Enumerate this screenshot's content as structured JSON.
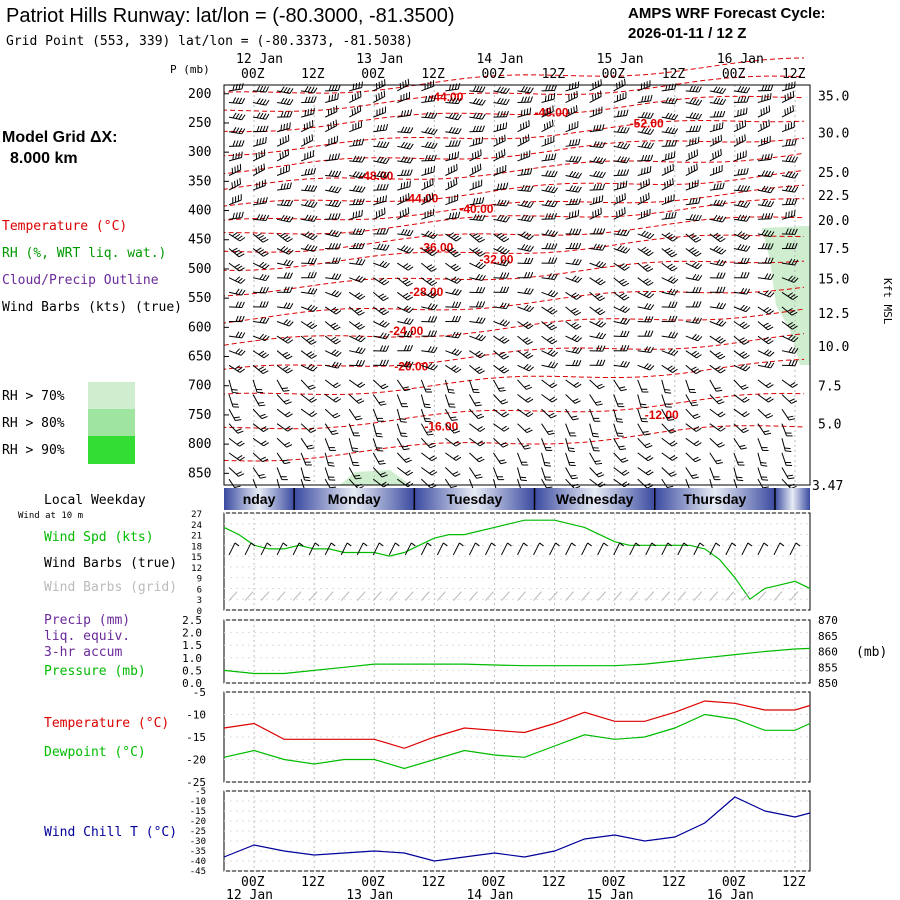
{
  "header": {
    "title": "Patriot Hills Runway:  lat/lon = (-80.3000, -81.3500)",
    "grid_point": "Grid Point (553, 339) lat/lon = (-80.3373, -81.5038)",
    "cycle_label": "AMPS WRF Forecast Cycle:",
    "cycle_value": "2026-01-11 / 12  Z",
    "model_grid_label": "Model Grid ΔX:",
    "model_grid_value": "8.000 km"
  },
  "time_axis": {
    "hour_labels": [
      "00Z",
      "12Z",
      "00Z",
      "12Z",
      "00Z",
      "12Z",
      "00Z",
      "12Z",
      "00Z",
      "12Z"
    ],
    "hour_labels_top": [
      "00Z",
      "12Z",
      "00Z",
      "12Z",
      "00Z",
      "12Z",
      "00Z",
      "12Z",
      "00Z",
      "12Z"
    ],
    "date_labels": [
      "12 Jan",
      "13 Jan",
      "14 Jan",
      "15 Jan",
      "16 Jan"
    ],
    "hours": [
      6,
      18,
      30,
      42,
      54,
      66,
      78,
      90,
      102,
      114
    ],
    "range_hours": [
      0,
      117
    ]
  },
  "weekday_bar": {
    "title": "Local Weekday",
    "days": [
      "Sunday",
      "Monday",
      "Tuesday",
      "Wednesday",
      "Thursday"
    ],
    "visible_first": "nday",
    "day_edges_hours": [
      -12,
      14,
      38,
      62,
      86,
      110,
      117
    ]
  },
  "colors": {
    "temperature": "#dd0000",
    "rh_label": "#009900",
    "cloud": "#6a2a9a",
    "wind_spd": "#00bb00",
    "dewpoint": "#00bb00",
    "wind_chill": "#000099",
    "rh70": "#cfeecf",
    "rh80": "#9fe59f",
    "rh90": "#33dd33",
    "weekday_dark": "#3a4aa0"
  },
  "profile": {
    "ylabel": "P (mb)",
    "pressure_ticks": [
      200,
      250,
      300,
      350,
      400,
      450,
      500,
      550,
      600,
      650,
      700,
      750,
      800,
      850
    ],
    "height_ticks_kft": [
      "35.0",
      "30.0",
      "25.0",
      "22.5",
      "20.0",
      "17.5",
      "15.0",
      "12.5",
      "10.0",
      "7.5",
      "5.0"
    ],
    "height_ticks_pressure": [
      205,
      268,
      336,
      375,
      418,
      466,
      518,
      577,
      634,
      701,
      766
    ],
    "surface_height": "3.47",
    "right_axis_label": "Kft MSL",
    "legend": {
      "temperature": "Temperature (°C)",
      "rh": "RH (%, WRT liq. wat.)",
      "cloud": "Cloud/Precip Outline",
      "wind": "Wind Barbs (kts) (true)",
      "rh70": "RH > 70%",
      "rh80": "RH > 80%",
      "rh90": "RH > 90%"
    },
    "isotherm_labels": [
      {
        "text": "-44.00",
        "t": 41,
        "p": 212
      },
      {
        "text": "-48.00",
        "t": 62,
        "p": 239
      },
      {
        "text": "-52.00",
        "t": 81,
        "p": 258
      },
      {
        "text": "-48.00",
        "t": 27,
        "p": 348
      },
      {
        "text": "-44.00",
        "t": 36,
        "p": 386
      },
      {
        "text": "-40.00",
        "t": 47,
        "p": 404
      },
      {
        "text": "-36.00",
        "t": 39,
        "p": 470
      },
      {
        "text": "-32.00",
        "t": 51,
        "p": 491
      },
      {
        "text": "-28.00",
        "t": 37,
        "p": 546
      },
      {
        "text": "-24.00",
        "t": 33,
        "p": 613
      },
      {
        "text": "-20.00",
        "t": 34,
        "p": 674
      },
      {
        "text": "-16.00",
        "t": 40,
        "p": 777
      },
      {
        "text": "-12.00",
        "t": 84,
        "p": 757
      }
    ]
  },
  "wind_panel": {
    "legend_local": "Wind at 10 m",
    "spd_label": "Wind Spd (kts)",
    "barbs_true": "Wind Barbs (true)",
    "barbs_grid": "Wind Barbs (grid)",
    "yticks": [
      "27",
      "24",
      "21",
      "18",
      "15",
      "12",
      "9",
      "6",
      "3",
      "0"
    ],
    "ylim": [
      0,
      27
    ]
  },
  "pressure_panel": {
    "precip_label": "Precip (mm)",
    "precip_sub1": "liq. equiv.",
    "precip_sub2": "3-hr accum",
    "pressure_label": "Pressure (mb)",
    "unit": "(mb)",
    "left_ticks": [
      "2.5",
      "2.0",
      "1.5",
      "1.0",
      "0.5",
      "0.0"
    ],
    "right_ticks": [
      "870",
      "865",
      "860",
      "855",
      "850"
    ],
    "ylim_mb": [
      850,
      870
    ]
  },
  "temp_panel": {
    "temp_label": "Temperature (°C)",
    "dew_label": "Dewpoint (°C)",
    "yticks": [
      "-5",
      "-10",
      "-15",
      "-20",
      "-25"
    ],
    "ylim": [
      -25,
      -5
    ]
  },
  "chill_panel": {
    "label": "Wind Chill T (°C)",
    "yticks": [
      "-5",
      "-10",
      "-15",
      "-20",
      "-25",
      "-30",
      "-35",
      "-40",
      "-45"
    ],
    "ylim": [
      -45,
      -5
    ]
  },
  "chart_data": [
    {
      "type": "line",
      "title": "Wind Spd (kts) at 10 m",
      "ylabel": "Wind Spd (kts)",
      "ylim": [
        0,
        27
      ],
      "x": [
        0,
        3,
        6,
        9,
        12,
        15,
        18,
        21,
        24,
        27,
        30,
        33,
        36,
        39,
        42,
        45,
        48,
        51,
        54,
        57,
        60,
        63,
        66,
        69,
        72,
        75,
        78,
        81,
        84,
        87,
        90,
        93,
        96,
        99,
        102,
        105,
        108,
        111,
        114,
        117
      ],
      "series": [
        {
          "name": "Wind Spd",
          "values": [
            23,
            21,
            18,
            17,
            17,
            18,
            17,
            17,
            16,
            16,
            16,
            15,
            16,
            18,
            20,
            21,
            21,
            22,
            23,
            24,
            25,
            25,
            25,
            24,
            23,
            21,
            19,
            18,
            18,
            18,
            18,
            18,
            17,
            14,
            9,
            3,
            6,
            7,
            8,
            6
          ]
        }
      ]
    },
    {
      "type": "line",
      "title": "Pressure (mb)",
      "ylabel": "Pressure (mb)",
      "ylim": [
        850,
        870
      ],
      "x": [
        0,
        6,
        12,
        18,
        24,
        30,
        36,
        42,
        48,
        54,
        60,
        66,
        72,
        78,
        84,
        90,
        96,
        102,
        108,
        114,
        117
      ],
      "series": [
        {
          "name": "Pressure",
          "values": [
            854,
            853,
            853,
            854,
            855,
            856,
            856,
            856,
            856,
            855.7,
            855.5,
            855.5,
            855.5,
            855.5,
            856,
            857,
            858,
            859,
            860,
            860.8,
            861
          ]
        }
      ]
    },
    {
      "type": "line",
      "title": "Temperature and Dewpoint",
      "ylabel": "°C",
      "ylim": [
        -25,
        -5
      ],
      "x": [
        0,
        6,
        12,
        18,
        24,
        30,
        36,
        42,
        48,
        54,
        60,
        66,
        72,
        78,
        84,
        90,
        96,
        102,
        108,
        114,
        117
      ],
      "series": [
        {
          "name": "Temperature",
          "values": [
            -13,
            -12,
            -15.5,
            -15.5,
            -15.5,
            -15.5,
            -17.5,
            -15,
            -13,
            -13.5,
            -14,
            -12,
            -9.5,
            -11.5,
            -11.5,
            -9.5,
            -7,
            -7.5,
            -9,
            -9,
            -8
          ]
        },
        {
          "name": "Dewpoint",
          "values": [
            -19.5,
            -18,
            -20,
            -21,
            -20,
            -20,
            -22,
            -20,
            -18,
            -19,
            -19.5,
            -17,
            -14.5,
            -15.5,
            -15,
            -13,
            -10,
            -11,
            -13.5,
            -13.5,
            -12
          ]
        }
      ]
    },
    {
      "type": "line",
      "title": "Wind Chill T (°C)",
      "ylabel": "Wind Chill T (°C)",
      "ylim": [
        -45,
        -5
      ],
      "x": [
        0,
        6,
        12,
        18,
        24,
        30,
        36,
        42,
        48,
        54,
        60,
        66,
        72,
        78,
        84,
        90,
        96,
        102,
        108,
        114,
        117
      ],
      "series": [
        {
          "name": "Wind Chill",
          "values": [
            -38,
            -32,
            -35,
            -37,
            -36,
            -35,
            -36,
            -40,
            -38,
            -36,
            -38,
            -35,
            -29,
            -27,
            -30,
            -28,
            -21,
            -8,
            -15,
            -18,
            -16
          ]
        }
      ]
    }
  ]
}
